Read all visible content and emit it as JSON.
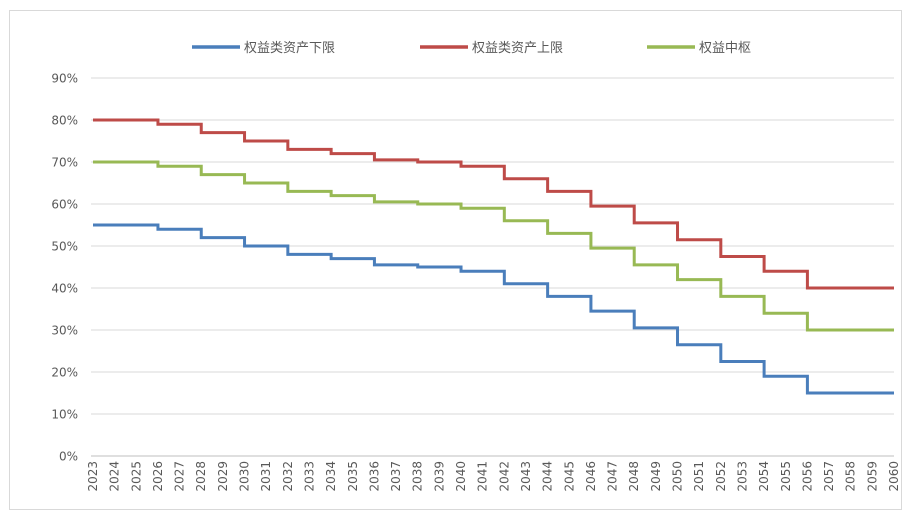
{
  "chart_data": {
    "type": "line",
    "title": "",
    "xlabel": "",
    "ylabel": "",
    "categories": [
      "2023",
      "2024",
      "2025",
      "2026",
      "2027",
      "2028",
      "2029",
      "2030",
      "2031",
      "2032",
      "2033",
      "2034",
      "2035",
      "2036",
      "2037",
      "2038",
      "2039",
      "2040",
      "2041",
      "2042",
      "2043",
      "2044",
      "2045",
      "2046",
      "2047",
      "2048",
      "2049",
      "2050",
      "2051",
      "2052",
      "2053",
      "2054",
      "2055",
      "2056",
      "2057",
      "2058",
      "2059",
      "2060"
    ],
    "ylim": [
      0,
      90
    ],
    "yticks": [
      0,
      10,
      20,
      30,
      40,
      50,
      60,
      70,
      80,
      90
    ],
    "ytick_labels": [
      "0%",
      "10%",
      "20%",
      "30%",
      "40%",
      "50%",
      "60%",
      "70%",
      "80%",
      "90%"
    ],
    "grid": true,
    "legend_position": "top",
    "series": [
      {
        "name": "权益类资产下限",
        "color": "#4a7ebb",
        "values": [
          55,
          55,
          55,
          54,
          54,
          52,
          52,
          50,
          50,
          48,
          48,
          47,
          47,
          45.5,
          45.5,
          45,
          45,
          44,
          44,
          41,
          41,
          38,
          38,
          34.5,
          34.5,
          30.5,
          30.5,
          26.5,
          26.5,
          22.5,
          22.5,
          19,
          19,
          15,
          15,
          15,
          15,
          15
        ]
      },
      {
        "name": "权益类资产上限",
        "color": "#be4b48",
        "values": [
          80,
          80,
          80,
          79,
          79,
          77,
          77,
          75,
          75,
          73,
          73,
          72,
          72,
          70.5,
          70.5,
          70,
          70,
          69,
          69,
          66,
          66,
          63,
          63,
          59.5,
          59.5,
          55.5,
          55.5,
          51.5,
          51.5,
          47.5,
          47.5,
          44,
          44,
          40,
          40,
          40,
          40,
          40
        ]
      },
      {
        "name": "权益中枢",
        "color": "#98b954",
        "values": [
          70,
          70,
          70,
          69,
          69,
          67,
          67,
          65,
          65,
          63,
          63,
          62,
          62,
          60.5,
          60.5,
          60,
          60,
          59,
          59,
          56,
          56,
          53,
          53,
          49.5,
          49.5,
          45.5,
          45.5,
          42,
          42,
          38,
          38,
          34,
          34,
          30,
          30,
          30,
          30,
          30
        ]
      }
    ]
  }
}
